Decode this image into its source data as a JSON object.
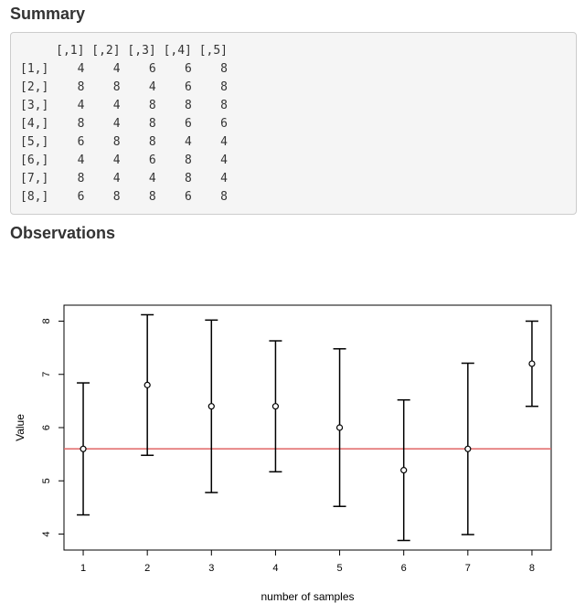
{
  "headings": {
    "summary": "Summary",
    "observations": "Observations"
  },
  "matrix": {
    "col_headers": [
      "[,1]",
      "[,2]",
      "[,3]",
      "[,4]",
      "[,5]"
    ],
    "rows": [
      {
        "label": "[1,]",
        "values": [
          4,
          4,
          6,
          6,
          8
        ]
      },
      {
        "label": "[2,]",
        "values": [
          8,
          8,
          4,
          6,
          8
        ]
      },
      {
        "label": "[3,]",
        "values": [
          4,
          4,
          8,
          8,
          8
        ]
      },
      {
        "label": "[4,]",
        "values": [
          8,
          4,
          8,
          6,
          6
        ]
      },
      {
        "label": "[5,]",
        "values": [
          6,
          8,
          8,
          4,
          4
        ]
      },
      {
        "label": "[6,]",
        "values": [
          4,
          4,
          6,
          8,
          4
        ]
      },
      {
        "label": "[7,]",
        "values": [
          8,
          4,
          4,
          8,
          4
        ]
      },
      {
        "label": "[8,]",
        "values": [
          6,
          8,
          8,
          6,
          8
        ]
      }
    ]
  },
  "chart_data": {
    "type": "scatter",
    "xlabel": "number of samples",
    "ylabel": "Value",
    "x": [
      1,
      2,
      3,
      4,
      5,
      6,
      7,
      8
    ],
    "means": [
      5.6,
      6.8,
      6.4,
      6.4,
      6.0,
      5.2,
      5.6,
      7.2
    ],
    "lower": [
      4.36,
      5.48,
      4.78,
      5.17,
      4.52,
      3.88,
      3.99,
      6.4
    ],
    "upper": [
      6.84,
      8.12,
      8.02,
      7.63,
      7.48,
      6.52,
      7.21,
      8.0
    ],
    "reference_line": 5.6,
    "reference_color": "#e06666",
    "xlim": [
      0.7,
      8.3
    ],
    "ylim": [
      3.7,
      8.3
    ],
    "x_ticks": [
      1,
      2,
      3,
      4,
      5,
      6,
      7,
      8
    ],
    "y_ticks": [
      4,
      5,
      6,
      7,
      8
    ],
    "grid": false
  }
}
